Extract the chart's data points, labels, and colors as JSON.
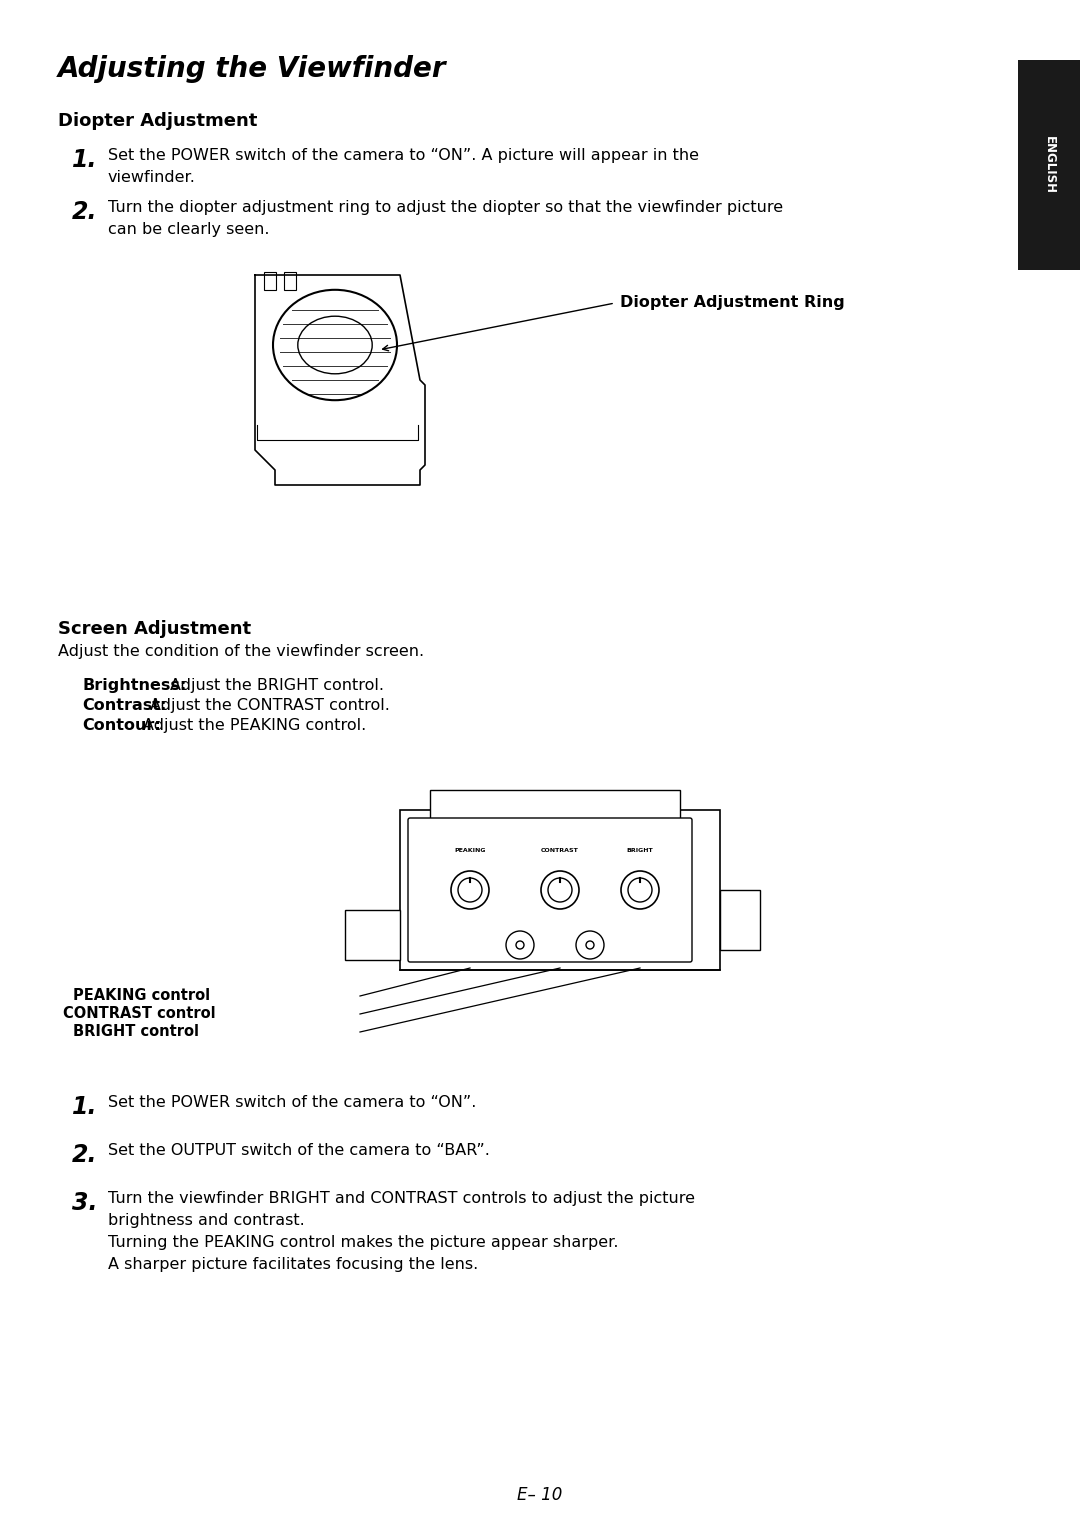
{
  "background_color": "#ffffff",
  "title": "Adjusting the Viewfinder",
  "sidebar_text": "ENGLISH",
  "sidebar_color": "#1a1a1a",
  "sidebar_text_color": "#ffffff",
  "section1_header": "Diopter Adjustment",
  "step1_number": "1.",
  "step1_text": "Set the POWER switch of the camera to “ON”. A picture will appear in the viewfinder.",
  "step2_number": "2.",
  "step2_text": "Turn the diopter adjustment ring to adjust the diopter so that the viewfinder picture can be clearly seen.",
  "diopter_label": "Diopter Adjustment Ring",
  "section2_header": "Screen Adjustment",
  "section2_desc": "Adjust the condition of the viewfinder screen.",
  "brightness_label": "Brightness:",
  "brightness_text": "Adjust the BRIGHT control.",
  "contrast_label": "Contrast:",
  "contrast_text": "Adjust the CONTRAST control.",
  "contour_label": "Contour:",
  "contour_text": "Adjust the PEAKING control.",
  "peaking_label": "PEAKING control",
  "contrast_ctrl_label": "CONTRAST control",
  "bright_ctrl_label": "BRIGHT control",
  "s2step1_text": "Set the POWER switch of the camera to “ON”.",
  "s2step2_text": "Set the OUTPUT switch of the camera to “BAR”.",
  "s2step3_text": "Turn the viewfinder BRIGHT and CONTRAST controls to adjust the picture brightness and contrast.\nTurning the PEAKING control makes the picture appear sharper.\nA sharper picture facilitates focusing the lens.",
  "page_number": "E– 10",
  "body_fontsize": 11.5,
  "header_fontsize": 13,
  "title_fontsize": 20,
  "step_num_fontsize": 17,
  "label_fontsize": 10.5
}
